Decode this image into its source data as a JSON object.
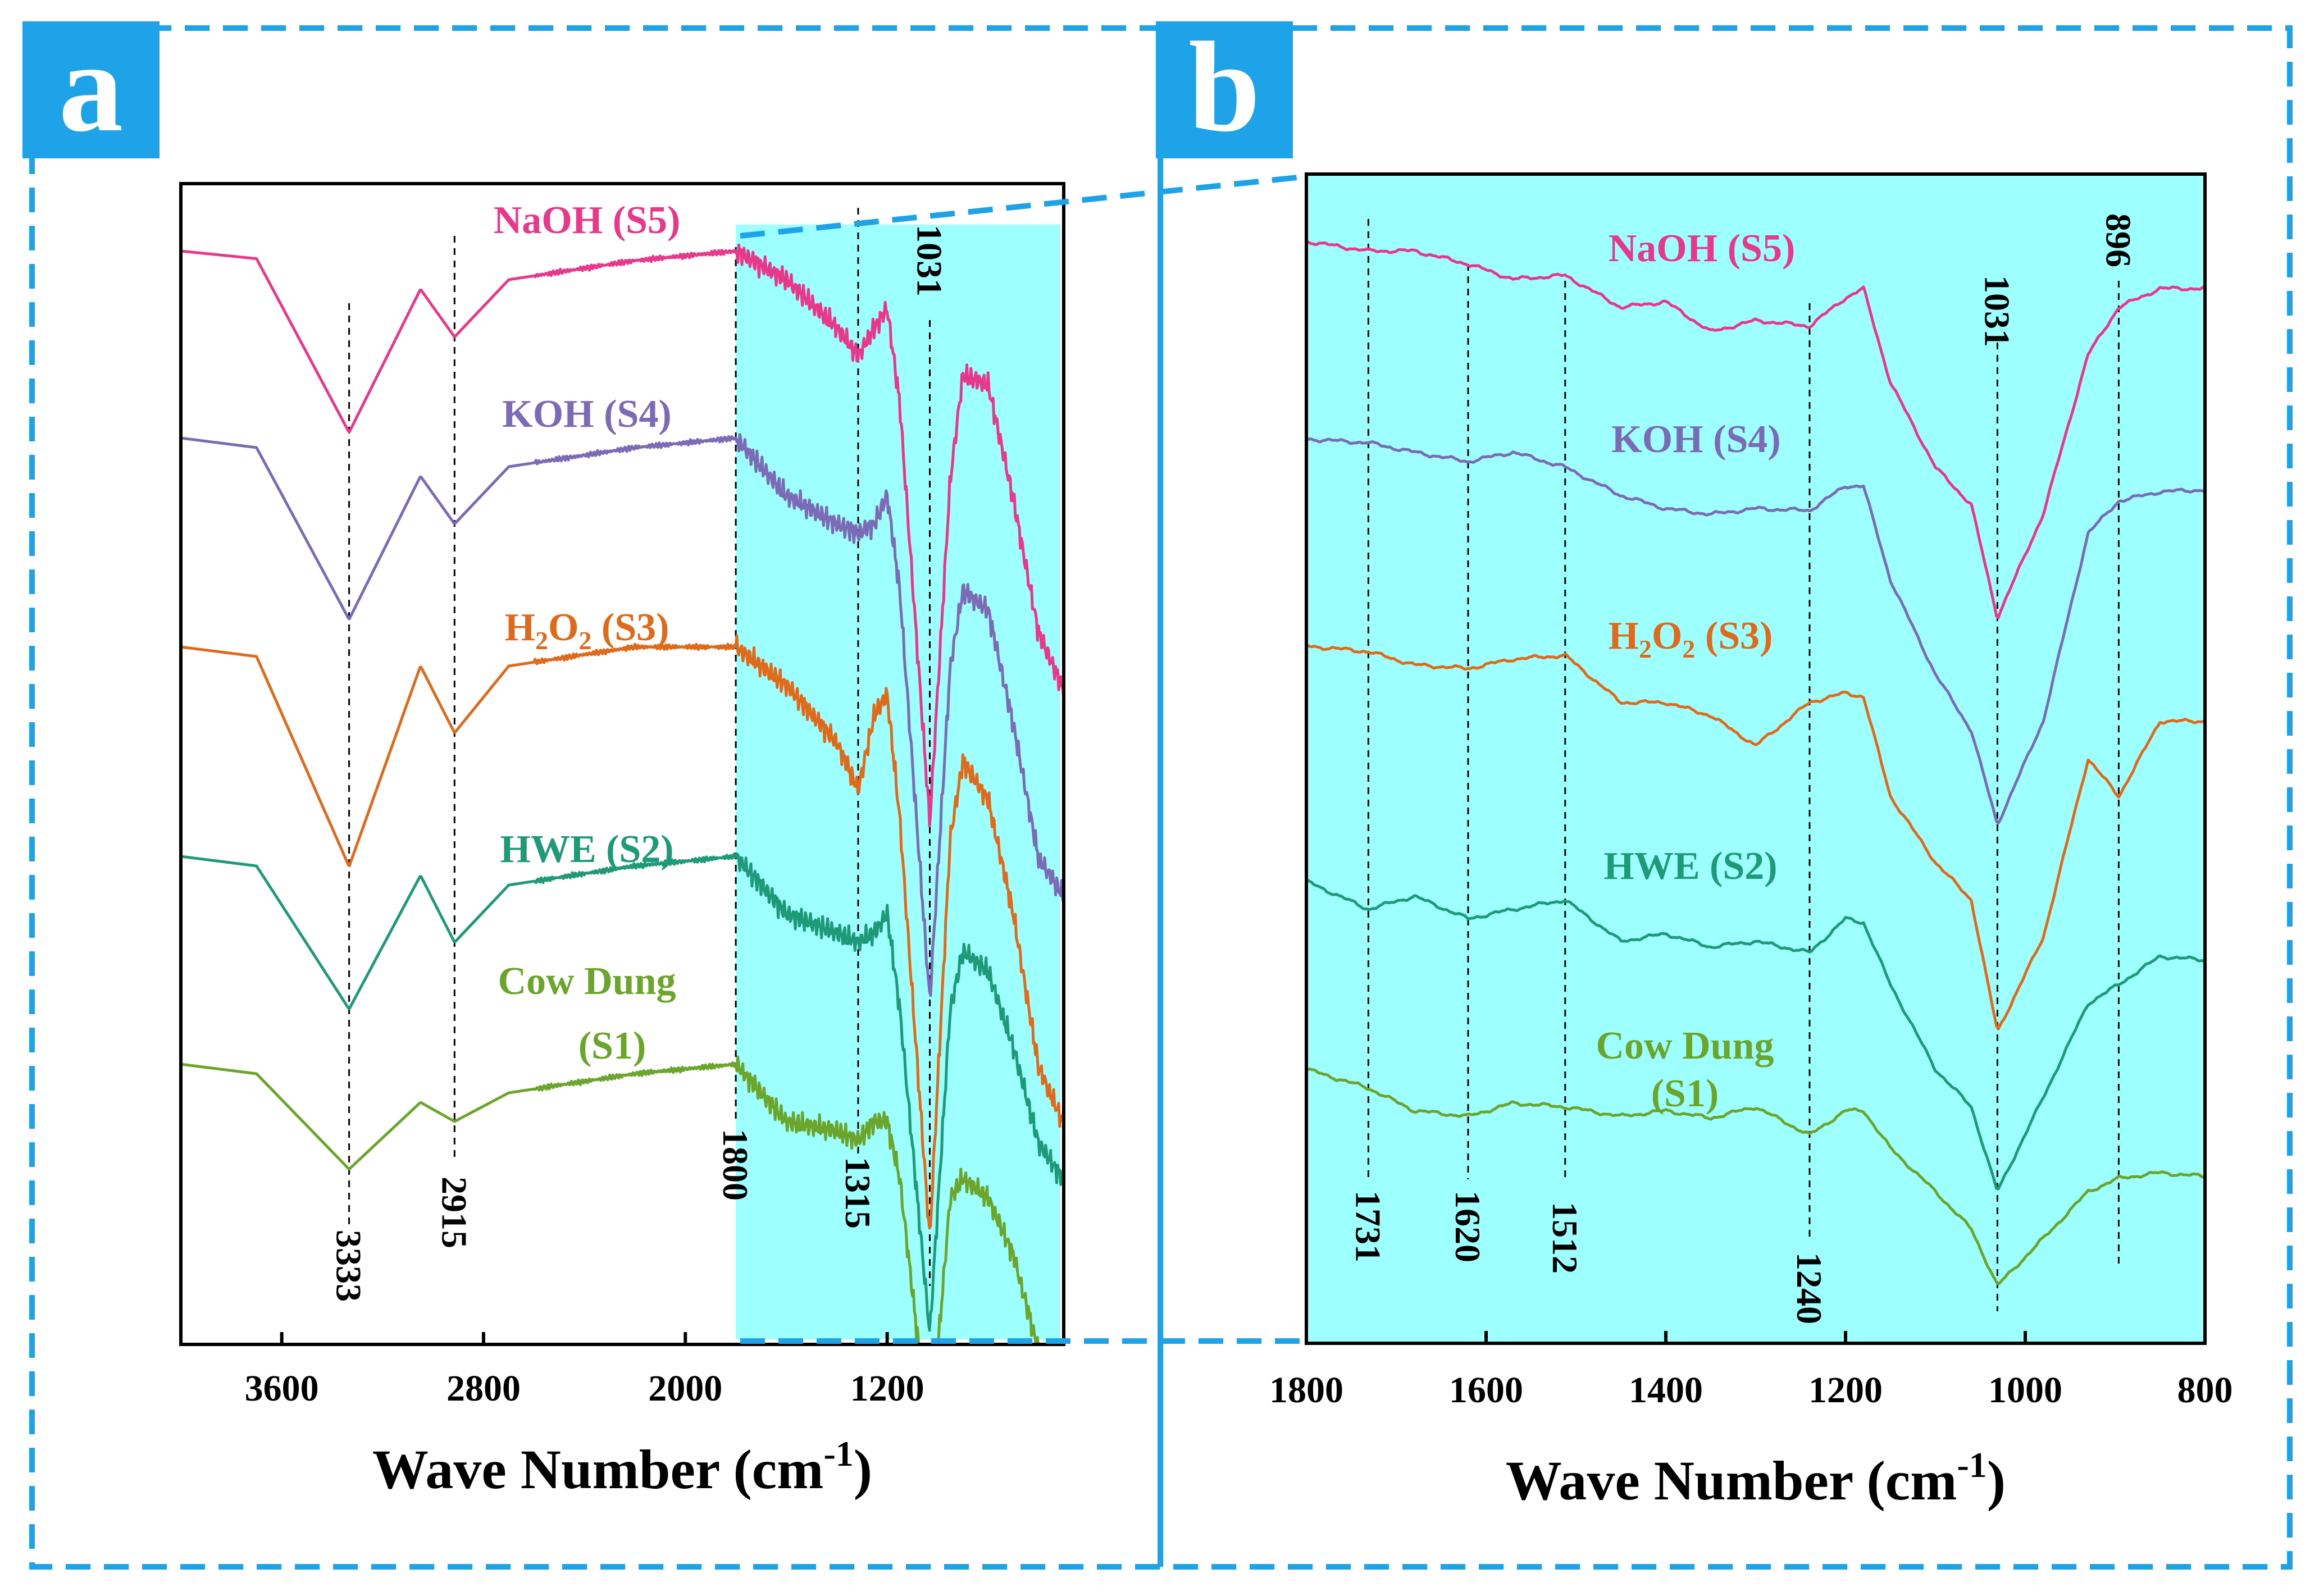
{
  "figure": {
    "panel_labels": [
      "a",
      "b"
    ],
    "accent_color": "#1FA3E8",
    "highlight_color": "#9EFFFF"
  },
  "chart_data": [
    {
      "panel": "a",
      "type": "line",
      "title": "",
      "xlabel": "Wave Number (cm",
      "xlabel_sup": "-1",
      "xlabel_close": ")",
      "ylabel": "",
      "xlim": [
        4000,
        500
      ],
      "x_reversed": true,
      "xticks": [
        3600,
        2800,
        2000,
        1200
      ],
      "xtick_labels": [
        "3600",
        "2800",
        "2000",
        "1200"
      ],
      "highlight_region": [
        1800,
        500
      ],
      "reference_lines": [
        {
          "x": 3333,
          "label": "3333"
        },
        {
          "x": 2915,
          "label": "2915"
        },
        {
          "x": 1800,
          "label": "1800"
        },
        {
          "x": 1315,
          "label": "1315"
        },
        {
          "x": 1031,
          "label": "1031"
        }
      ],
      "series": [
        {
          "name": "NaOH (S5)",
          "color": "#E8388C",
          "baseline": 0.0,
          "points": [
            [
              4000,
              0
            ],
            [
              3700,
              -0.04
            ],
            [
              3333,
              -0.95
            ],
            [
              3050,
              -0.2
            ],
            [
              2915,
              -0.45
            ],
            [
              2700,
              -0.15
            ],
            [
              2200,
              -0.05
            ],
            [
              1800,
              0
            ],
            [
              1600,
              -0.15
            ],
            [
              1400,
              -0.4
            ],
            [
              1315,
              -0.55
            ],
            [
              1250,
              -0.4
            ],
            [
              1200,
              -0.3
            ],
            [
              1150,
              -0.8
            ],
            [
              1031,
              -3.0
            ],
            [
              950,
              -1.2
            ],
            [
              900,
              -0.65
            ],
            [
              800,
              -0.7
            ],
            [
              700,
              -1.3
            ],
            [
              600,
              -2.0
            ],
            [
              500,
              -2.3
            ]
          ]
        },
        {
          "name": "KOH (S4)",
          "color": "#7B6BB7",
          "baseline": -1.0,
          "points": [
            [
              4000,
              0
            ],
            [
              3700,
              -0.05
            ],
            [
              3333,
              -0.95
            ],
            [
              3050,
              -0.2
            ],
            [
              2915,
              -0.45
            ],
            [
              2700,
              -0.15
            ],
            [
              2200,
              -0.05
            ],
            [
              1800,
              0
            ],
            [
              1600,
              -0.3
            ],
            [
              1400,
              -0.45
            ],
            [
              1315,
              -0.5
            ],
            [
              1250,
              -0.45
            ],
            [
              1200,
              -0.3
            ],
            [
              1150,
              -0.8
            ],
            [
              1031,
              -2.95
            ],
            [
              950,
              -1.2
            ],
            [
              900,
              -0.8
            ],
            [
              800,
              -0.9
            ],
            [
              700,
              -1.5
            ],
            [
              600,
              -2.2
            ],
            [
              500,
              -2.4
            ]
          ]
        },
        {
          "name": "H2O2 (S3)",
          "color": "#E06A1B",
          "baseline": -2.0,
          "points": [
            [
              4000,
              0
            ],
            [
              3700,
              -0.05
            ],
            [
              3333,
              -1.15
            ],
            [
              3050,
              -0.1
            ],
            [
              2915,
              -0.45
            ],
            [
              2700,
              -0.1
            ],
            [
              2200,
              0
            ],
            [
              1800,
              0
            ],
            [
              1600,
              -0.2
            ],
            [
              1400,
              -0.5
            ],
            [
              1315,
              -0.75
            ],
            [
              1250,
              -0.35
            ],
            [
              1200,
              -0.25
            ],
            [
              1150,
              -0.9
            ],
            [
              1031,
              -3.1
            ],
            [
              950,
              -1.0
            ],
            [
              900,
              -0.6
            ],
            [
              800,
              -0.8
            ],
            [
              700,
              -1.4
            ],
            [
              600,
              -2.2
            ],
            [
              500,
              -2.5
            ]
          ]
        },
        {
          "name": "HWE (S2)",
          "color": "#1F9A78",
          "baseline": -3.0,
          "points": [
            [
              4000,
              0
            ],
            [
              3700,
              -0.05
            ],
            [
              3333,
              -0.8
            ],
            [
              3050,
              -0.1
            ],
            [
              2915,
              -0.45
            ],
            [
              2700,
              -0.15
            ],
            [
              2200,
              -0.05
            ],
            [
              1800,
              0
            ],
            [
              1600,
              -0.3
            ],
            [
              1400,
              -0.4
            ],
            [
              1315,
              -0.45
            ],
            [
              1250,
              -0.4
            ],
            [
              1200,
              -0.3
            ],
            [
              1150,
              -0.8
            ],
            [
              1031,
              -2.5
            ],
            [
              950,
              -0.8
            ],
            [
              900,
              -0.5
            ],
            [
              800,
              -0.6
            ],
            [
              700,
              -1.0
            ],
            [
              600,
              -1.5
            ],
            [
              500,
              -1.7
            ]
          ]
        },
        {
          "name": "Cow Dung (S1)",
          "color": "#6BA52C",
          "baseline": -4.1,
          "points": [
            [
              4000,
              0
            ],
            [
              3700,
              -0.05
            ],
            [
              3333,
              -0.55
            ],
            [
              3050,
              -0.2
            ],
            [
              2915,
              -0.3
            ],
            [
              2700,
              -0.15
            ],
            [
              2200,
              -0.05
            ],
            [
              1800,
              0
            ],
            [
              1600,
              -0.3
            ],
            [
              1400,
              -0.35
            ],
            [
              1315,
              -0.4
            ],
            [
              1250,
              -0.3
            ],
            [
              1200,
              -0.3
            ],
            [
              1150,
              -0.6
            ],
            [
              1031,
              -2.0
            ],
            [
              950,
              -0.7
            ],
            [
              900,
              -0.6
            ],
            [
              800,
              -0.7
            ],
            [
              700,
              -1.0
            ],
            [
              600,
              -1.5
            ],
            [
              500,
              -1.7
            ]
          ]
        }
      ],
      "legend_labels": [
        "NaOH (S5)",
        "KOH (S4)",
        "H",
        "2",
        "O",
        "2",
        " (S3)",
        "HWE (S2)",
        "Cow Dung",
        "(S1)"
      ]
    },
    {
      "panel": "b",
      "type": "line",
      "title": "",
      "xlabel": "Wave Number (cm",
      "xlabel_sup": "-1",
      "xlabel_close": ")",
      "ylabel": "",
      "xlim": [
        1800,
        800
      ],
      "x_reversed": true,
      "xticks": [
        1800,
        1600,
        1400,
        1200,
        1000,
        800
      ],
      "xtick_labels": [
        "1800",
        "1600",
        "1400",
        "1200",
        "1000",
        "800"
      ],
      "reference_lines": [
        {
          "x": 1731,
          "label": "1731"
        },
        {
          "x": 1620,
          "label": "1620"
        },
        {
          "x": 1512,
          "label": "1512"
        },
        {
          "x": 1240,
          "label": "1240"
        },
        {
          "x": 1031,
          "label": "1031"
        },
        {
          "x": 896,
          "label": "896"
        }
      ],
      "series": [
        {
          "name": "NaOH (S5)",
          "color": "#E8388C",
          "points": [
            [
              1800,
              0
            ],
            [
              1731,
              -0.05
            ],
            [
              1680,
              -0.05
            ],
            [
              1620,
              -0.12
            ],
            [
              1570,
              -0.2
            ],
            [
              1512,
              -0.18
            ],
            [
              1450,
              -0.35
            ],
            [
              1400,
              -0.32
            ],
            [
              1350,
              -0.48
            ],
            [
              1300,
              -0.42
            ],
            [
              1240,
              -0.45
            ],
            [
              1200,
              -0.3
            ],
            [
              1180,
              -0.25
            ],
            [
              1150,
              -0.75
            ],
            [
              1100,
              -1.2
            ],
            [
              1060,
              -1.4
            ],
            [
              1031,
              -2.0
            ],
            [
              980,
              -1.45
            ],
            [
              930,
              -0.6
            ],
            [
              896,
              -0.35
            ],
            [
              850,
              -0.25
            ],
            [
              800,
              -0.25
            ]
          ]
        },
        {
          "name": "KOH (S4)",
          "color": "#7B6BB7",
          "points": [
            [
              1800,
              -1.05
            ],
            [
              1731,
              -1.07
            ],
            [
              1680,
              -1.12
            ],
            [
              1620,
              -1.17
            ],
            [
              1570,
              -1.12
            ],
            [
              1512,
              -1.2
            ],
            [
              1450,
              -1.35
            ],
            [
              1400,
              -1.42
            ],
            [
              1350,
              -1.45
            ],
            [
              1300,
              -1.42
            ],
            [
              1240,
              -1.43
            ],
            [
              1200,
              -1.3
            ],
            [
              1180,
              -1.3
            ],
            [
              1150,
              -1.8
            ],
            [
              1100,
              -2.3
            ],
            [
              1060,
              -2.6
            ],
            [
              1031,
              -3.1
            ],
            [
              980,
              -2.55
            ],
            [
              930,
              -1.55
            ],
            [
              896,
              -1.38
            ],
            [
              850,
              -1.33
            ],
            [
              800,
              -1.32
            ]
          ]
        },
        {
          "name": "H2O2 (S3)",
          "color": "#E06A1B",
          "points": [
            [
              1800,
              -2.15
            ],
            [
              1731,
              -2.18
            ],
            [
              1680,
              -2.25
            ],
            [
              1620,
              -2.27
            ],
            [
              1570,
              -2.22
            ],
            [
              1512,
              -2.2
            ],
            [
              1450,
              -2.45
            ],
            [
              1400,
              -2.45
            ],
            [
              1350,
              -2.52
            ],
            [
              1300,
              -2.68
            ],
            [
              1240,
              -2.45
            ],
            [
              1200,
              -2.4
            ],
            [
              1180,
              -2.42
            ],
            [
              1150,
              -2.95
            ],
            [
              1100,
              -3.3
            ],
            [
              1060,
              -3.5
            ],
            [
              1031,
              -4.2
            ],
            [
              980,
              -3.7
            ],
            [
              930,
              -2.75
            ],
            [
              896,
              -2.95
            ],
            [
              850,
              -2.55
            ],
            [
              800,
              -2.55
            ]
          ]
        },
        {
          "name": "HWE (S2)",
          "color": "#1F9A78",
          "points": [
            [
              1800,
              -3.4
            ],
            [
              1731,
              -3.55
            ],
            [
              1680,
              -3.48
            ],
            [
              1620,
              -3.6
            ],
            [
              1570,
              -3.55
            ],
            [
              1512,
              -3.5
            ],
            [
              1450,
              -3.72
            ],
            [
              1400,
              -3.68
            ],
            [
              1350,
              -3.75
            ],
            [
              1300,
              -3.72
            ],
            [
              1240,
              -3.78
            ],
            [
              1200,
              -3.6
            ],
            [
              1180,
              -3.62
            ],
            [
              1150,
              -3.95
            ],
            [
              1100,
              -4.4
            ],
            [
              1060,
              -4.6
            ],
            [
              1031,
              -5.05
            ],
            [
              980,
              -4.55
            ],
            [
              930,
              -4.05
            ],
            [
              896,
              -3.95
            ],
            [
              850,
              -3.8
            ],
            [
              800,
              -3.82
            ]
          ]
        },
        {
          "name": "Cow Dung (S1)",
          "color": "#6BA52C",
          "points": [
            [
              1800,
              -4.4
            ],
            [
              1731,
              -4.5
            ],
            [
              1680,
              -4.62
            ],
            [
              1620,
              -4.65
            ],
            [
              1570,
              -4.58
            ],
            [
              1512,
              -4.6
            ],
            [
              1450,
              -4.65
            ],
            [
              1400,
              -4.62
            ],
            [
              1350,
              -4.66
            ],
            [
              1300,
              -4.6
            ],
            [
              1240,
              -4.75
            ],
            [
              1200,
              -4.62
            ],
            [
              1180,
              -4.62
            ],
            [
              1150,
              -4.82
            ],
            [
              1100,
              -5.05
            ],
            [
              1060,
              -5.25
            ],
            [
              1031,
              -5.55
            ],
            [
              980,
              -5.3
            ],
            [
              930,
              -5.05
            ],
            [
              896,
              -4.98
            ],
            [
              850,
              -4.95
            ],
            [
              800,
              -4.97
            ]
          ]
        }
      ],
      "legend_labels": [
        "NaOH (S5)",
        "KOH (S4)",
        "H",
        "2",
        "O",
        "2",
        " (S3)",
        "HWE (S2)",
        "Cow Dung",
        "(S1)"
      ]
    }
  ]
}
